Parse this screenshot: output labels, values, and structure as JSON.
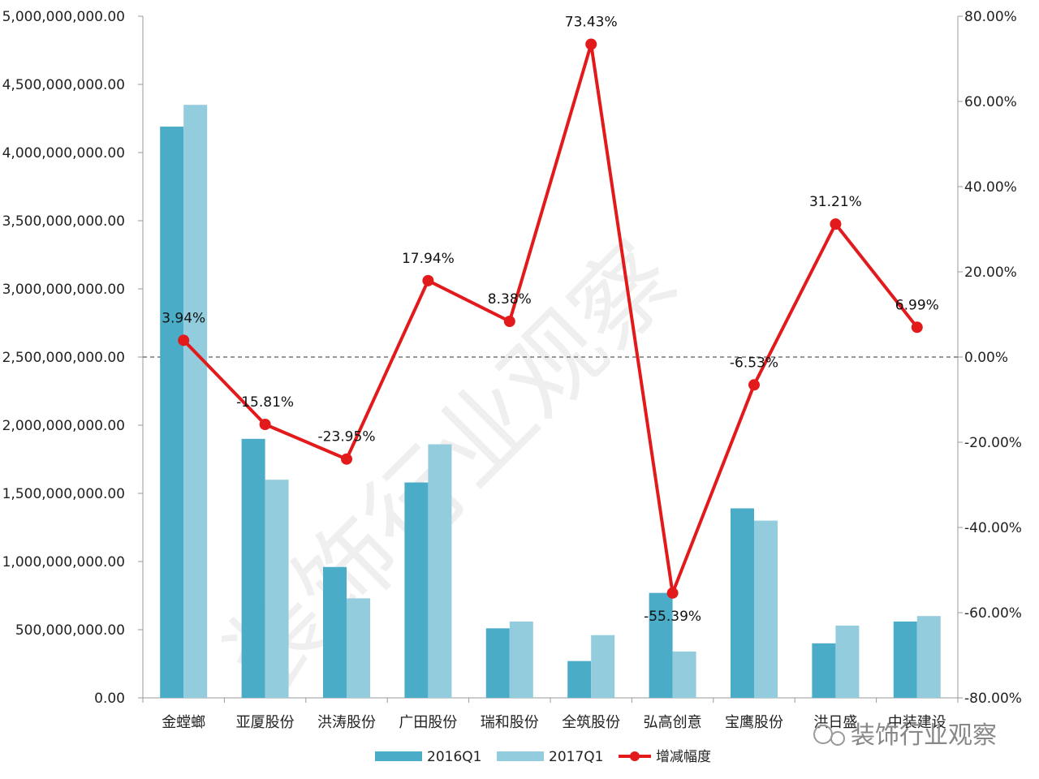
{
  "chart_data": {
    "type": "bar",
    "categories": [
      "金螳螂",
      "亚厦股份",
      "洪涛股份",
      "广田股份",
      "瑞和股份",
      "全筑股份",
      "弘高创意",
      "宝鹰股份",
      "洪日盛",
      "中装建设"
    ],
    "series": [
      {
        "name": "2016Q1",
        "type": "bar",
        "axis": "left",
        "color": "#4aacc6",
        "values": [
          4190000000,
          1900000000,
          960000000,
          1580000000,
          510000000,
          270000000,
          770000000,
          1390000000,
          400000000,
          560000000
        ]
      },
      {
        "name": "2017Q1",
        "type": "bar",
        "axis": "left",
        "color": "#93cddd",
        "values": [
          4350000000,
          1600000000,
          730000000,
          1860000000,
          560000000,
          460000000,
          340000000,
          1300000000,
          530000000,
          600000000
        ]
      },
      {
        "name": "增减幅度",
        "type": "line",
        "axis": "right",
        "color": "#e31a1c",
        "values": [
          3.94,
          -15.81,
          -23.95,
          17.94,
          8.38,
          73.43,
          -55.39,
          -6.53,
          31.21,
          6.99
        ],
        "labels": [
          "3.94%",
          "-15.81%",
          "-23.95%",
          "17.94%",
          "8.38%",
          "73.43%",
          "-55.39%",
          "-6.53%",
          "31.21%",
          "6.99%"
        ]
      }
    ],
    "y_left": {
      "ylim": [
        0,
        5000000000
      ],
      "ticks": [
        0,
        500000000,
        1000000000,
        1500000000,
        2000000000,
        2500000000,
        3000000000,
        3500000000,
        4000000000,
        4500000000,
        5000000000
      ],
      "tick_labels": [
        "0.00",
        "500,000,000.00",
        "1,000,000,000.00",
        "1,500,000,000.00",
        "2,000,000,000.00",
        "2,500,000,000.00",
        "3,000,000,000.00",
        "3,500,000,000.00",
        "4,000,000,000.00",
        "4,500,000,000.00",
        "5,000,000,000.00"
      ]
    },
    "y_right": {
      "ylim": [
        -80,
        80
      ],
      "ticks": [
        -80,
        -60,
        -40,
        -20,
        0,
        20,
        40,
        60,
        80
      ],
      "tick_labels": [
        "-80.00%",
        "-60.00%",
        "-40.00%",
        "-20.00%",
        "0.00%",
        "20.00%",
        "40.00%",
        "60.00%",
        "80.00%"
      ]
    },
    "zero_line": true,
    "grid": false,
    "legend_position": "bottom",
    "title": "",
    "xlabel": "",
    "ylabel": ""
  },
  "watermark": {
    "text": "装饰行业观察",
    "logo_text": "装饰行业观察"
  }
}
